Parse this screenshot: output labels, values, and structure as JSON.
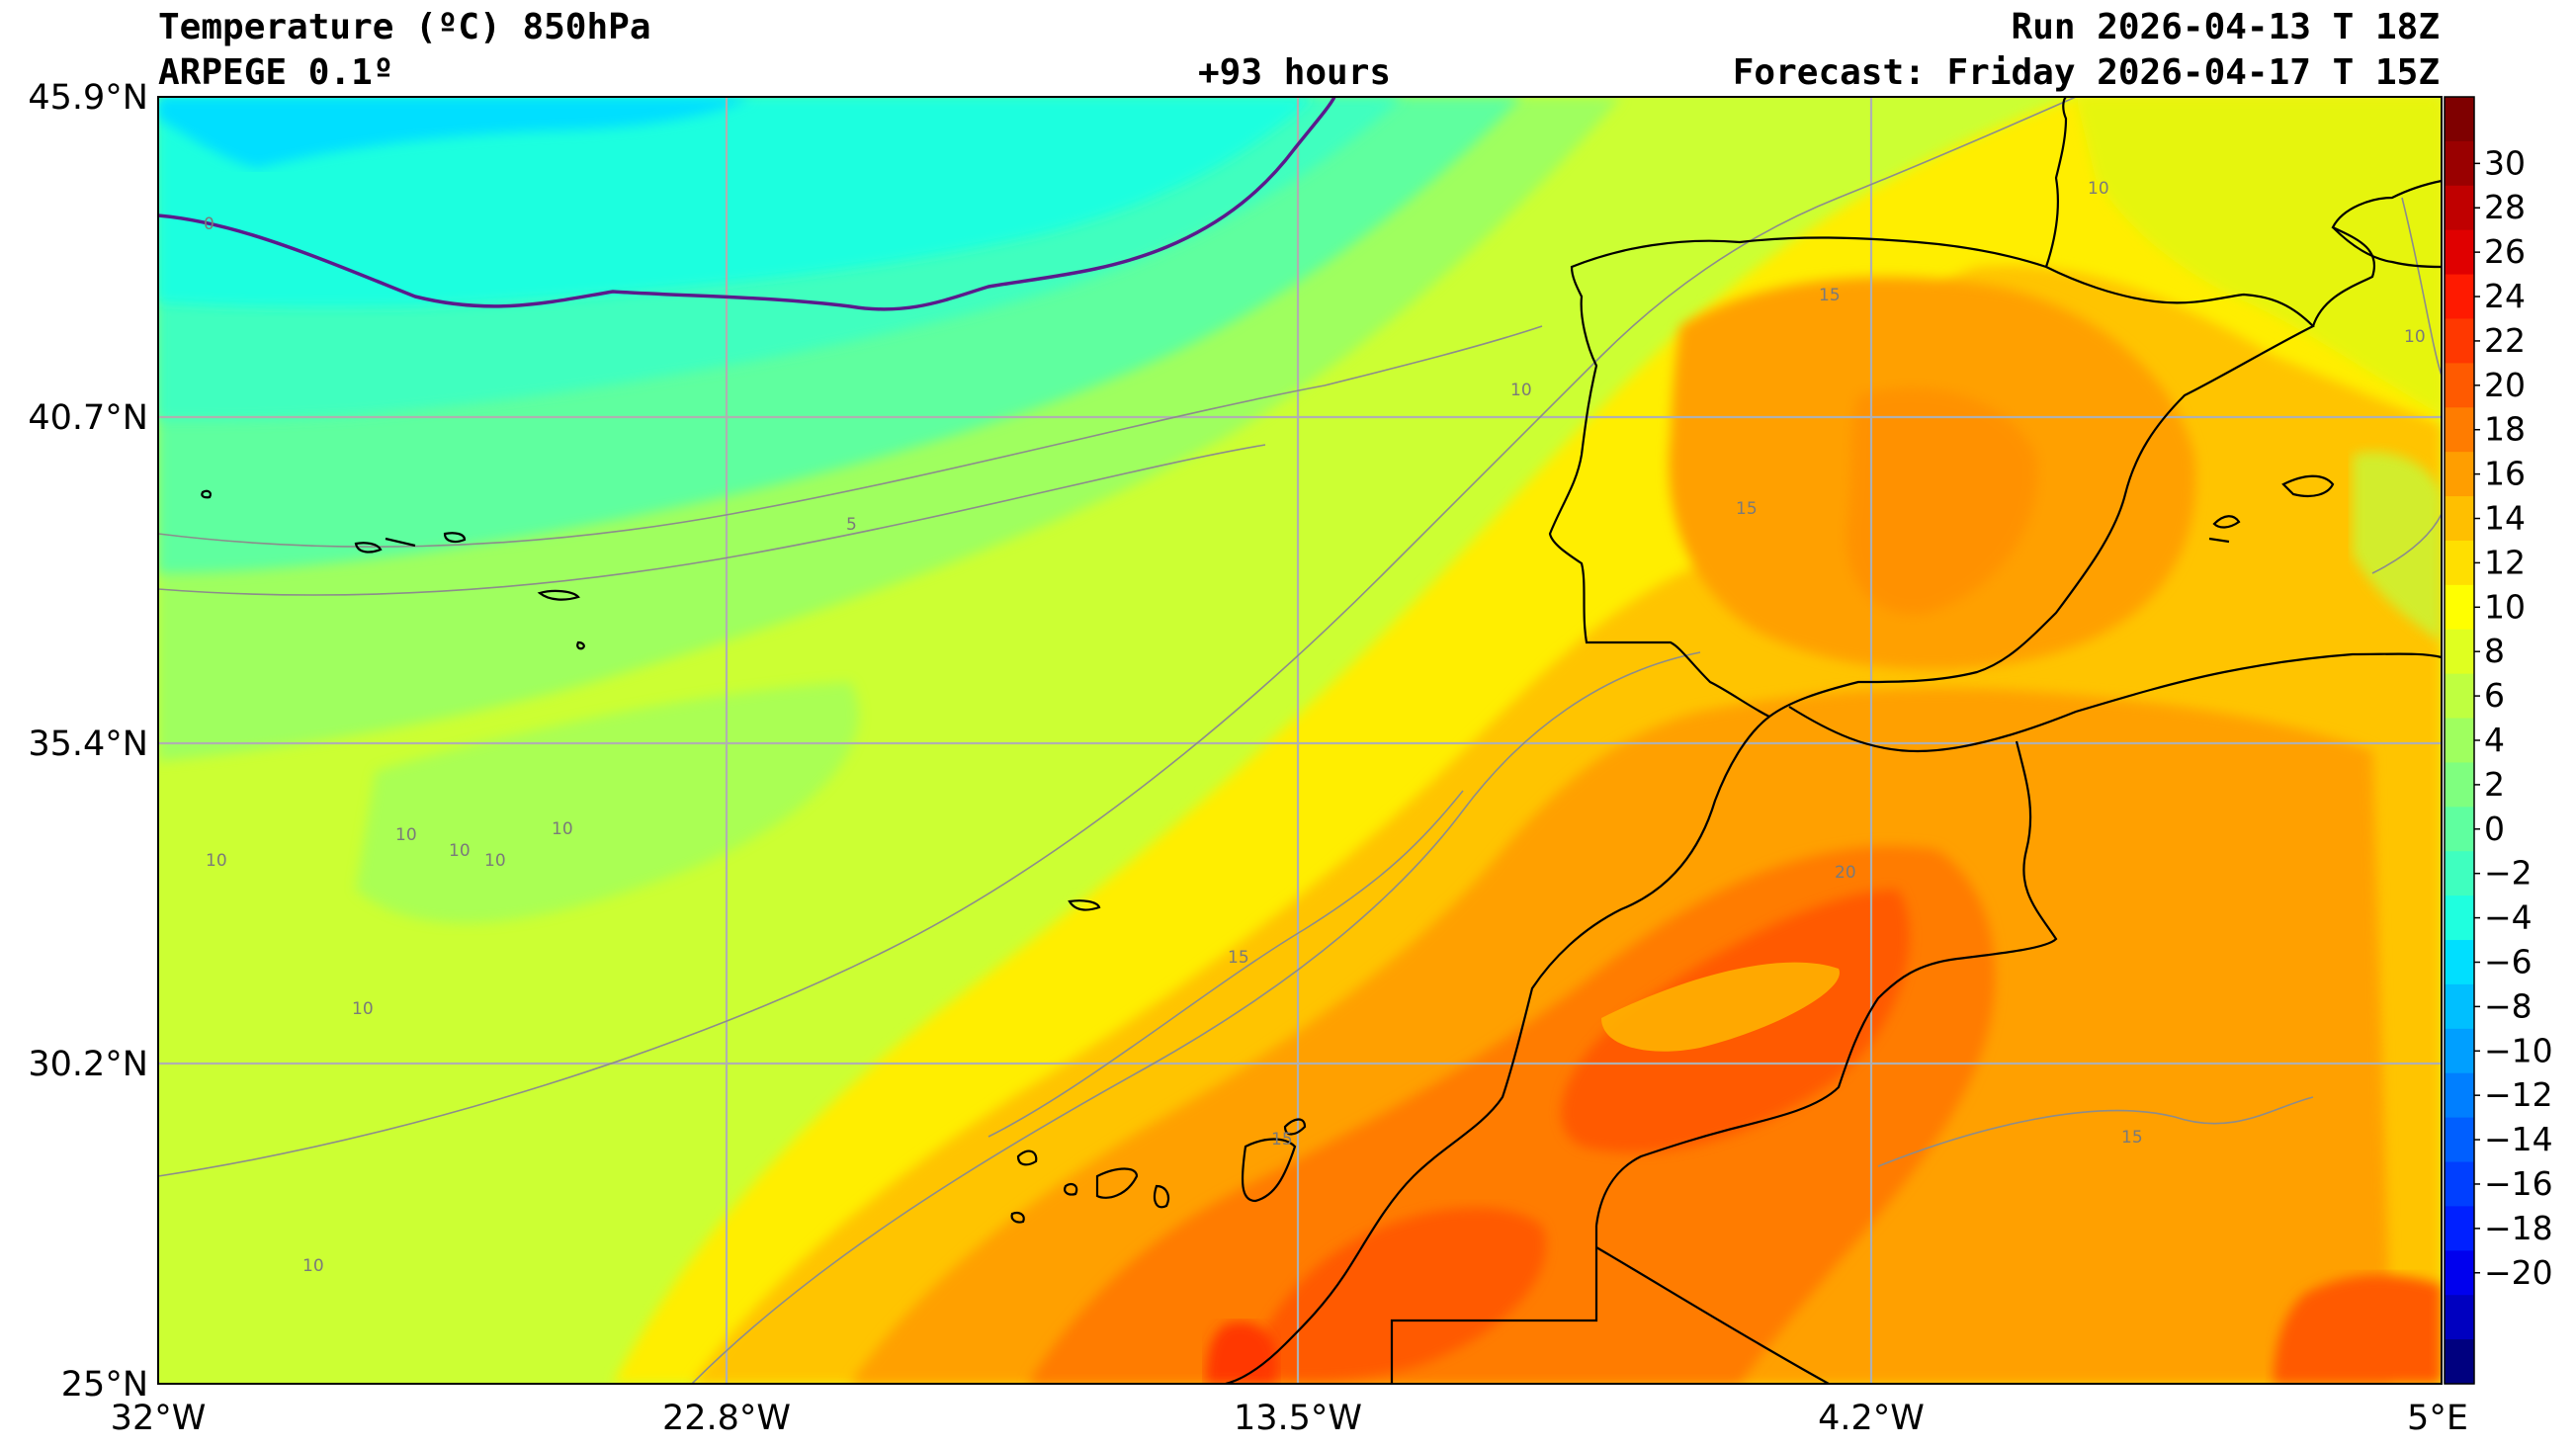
{
  "header": {
    "title_line1": "Temperature (ºC) 850hPa",
    "title_line2": "ARPEGE 0.1º",
    "lead_time": "+93 hours",
    "run": "Run 2026-04-13 T 18Z",
    "forecast": "Forecast: Friday 2026-04-17 T 15Z"
  },
  "map": {
    "lat_labels": [
      "45.9°N",
      "40.7°N",
      "35.4°N",
      "30.2°N",
      "25°N"
    ],
    "lon_labels": [
      "32°W",
      "22.8°W",
      "13.5°W",
      "4.2°W",
      "5°E"
    ],
    "contour_labels": [
      "0",
      "5",
      "10",
      "10",
      "10",
      "10",
      "10",
      "10",
      "10",
      "10",
      "10",
      "10",
      "15",
      "15",
      "15",
      "15",
      "15",
      "20"
    ],
    "grid_color": "#b0b0b0",
    "coastline_color": "#000000",
    "zero_isotherm_color": "#5b1a8c"
  },
  "colorbar": {
    "levels": [
      "30",
      "28",
      "26",
      "24",
      "22",
      "20",
      "18",
      "16",
      "14",
      "12",
      "10",
      "8",
      "6",
      "4",
      "2",
      "0",
      "−2",
      "−4",
      "−6",
      "−8",
      "−10",
      "−12",
      "−14",
      "−16",
      "−18",
      "−20"
    ],
    "colors": [
      "#7f0000",
      "#9a0000",
      "#c00000",
      "#e00000",
      "#ff1a00",
      "#ff3800",
      "#ff5a00",
      "#ff7c00",
      "#ff9e00",
      "#ffbf00",
      "#ffdf00",
      "#ffff00",
      "#dfff20",
      "#bfff40",
      "#9fff5f",
      "#7fff7f",
      "#5fff9f",
      "#3fffbf",
      "#1fffdf",
      "#00dfff",
      "#00bfff",
      "#009fff",
      "#007fff",
      "#005fff",
      "#003fff",
      "#0020ff",
      "#0000ee",
      "#0000c0",
      "#00007f"
    ]
  }
}
